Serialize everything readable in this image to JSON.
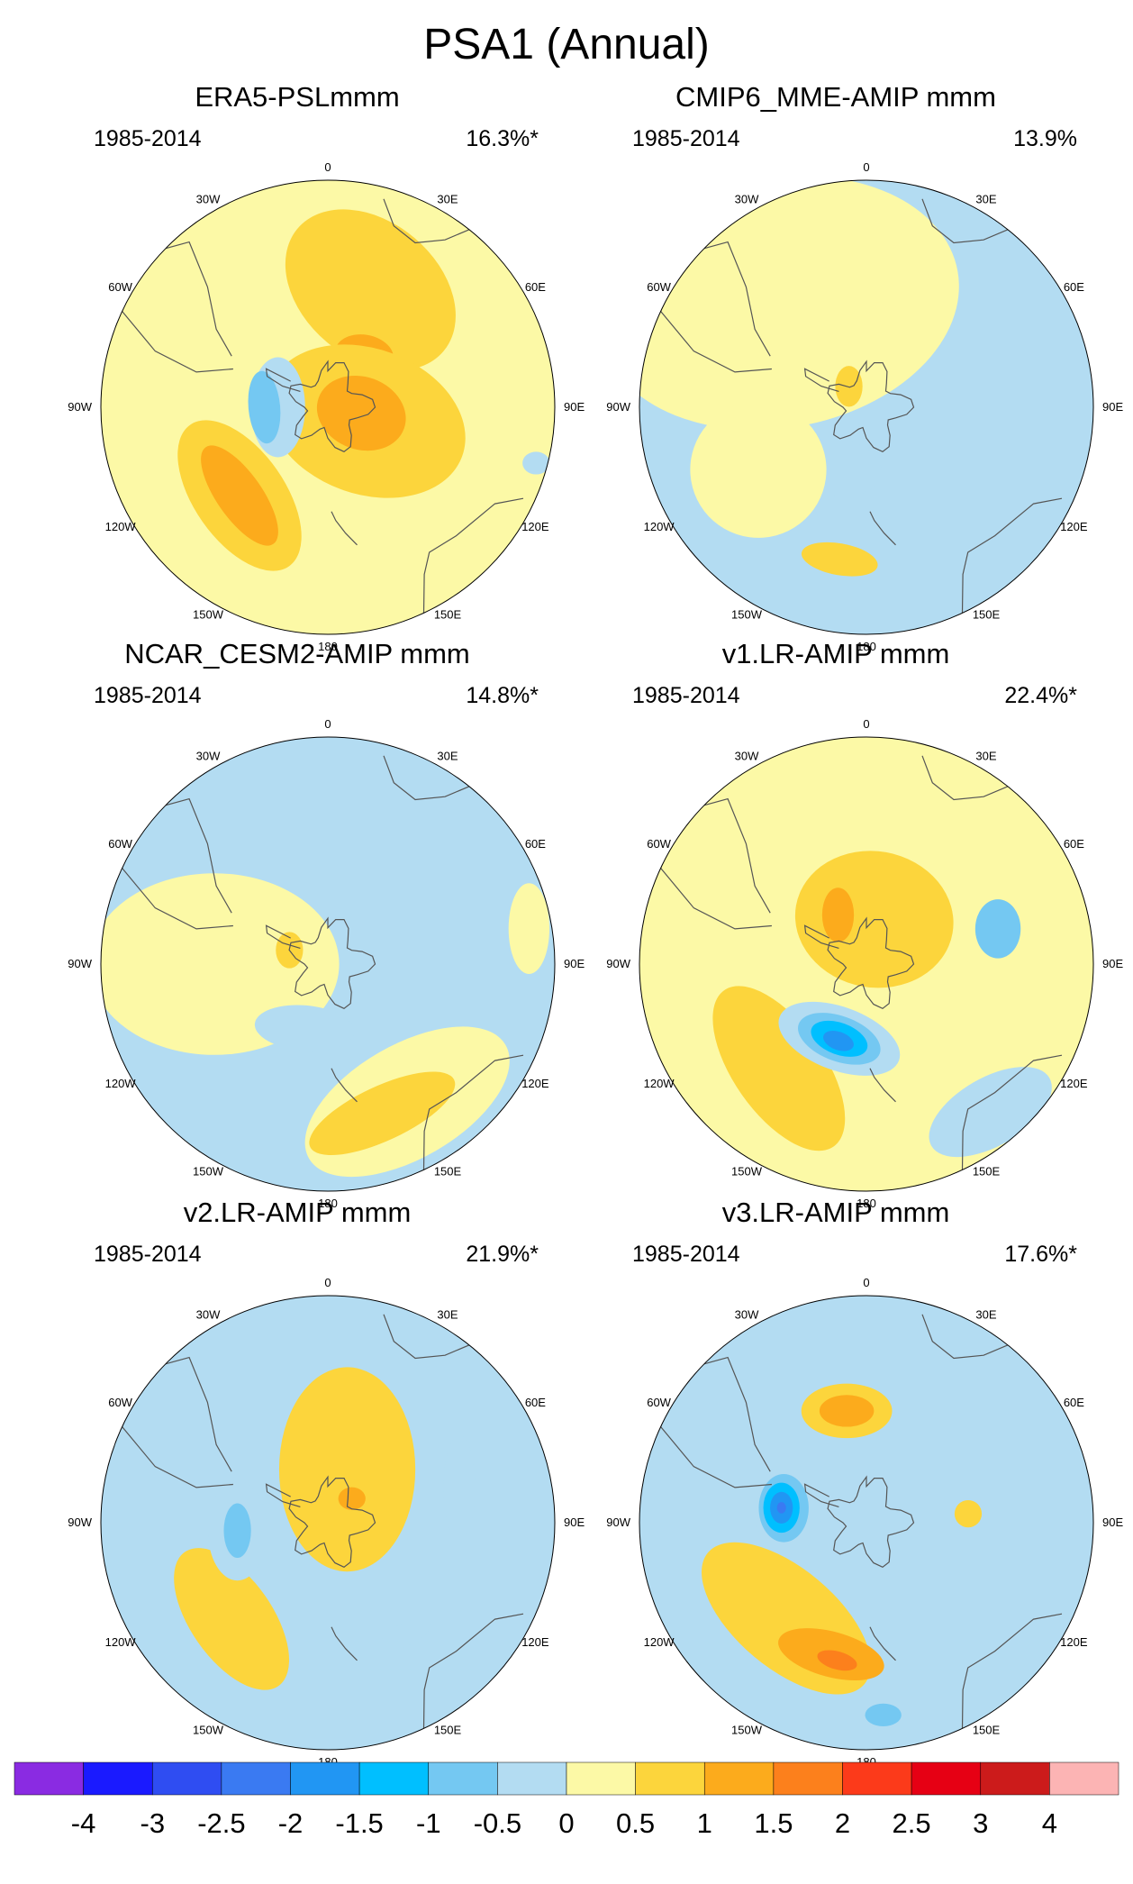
{
  "figure": {
    "title": "PSA1 (Annual)"
  },
  "panels": [
    {
      "id": "era5",
      "title": "ERA5-PSLmmm",
      "period": "1985-2014",
      "variance": "16.3%*",
      "blobs": [
        {
          "level": 1.5,
          "cx": 0.72,
          "cy": -0.1,
          "rx": 0.32,
          "ry": 0.3,
          "rot": 0
        },
        {
          "level": 1.0,
          "cx": 0.18,
          "cy": -0.62,
          "rx": 0.34,
          "ry": 0.22,
          "rot": 10
        }
      ]
    },
    {
      "id": "cmip6",
      "title": "CMIP6_MME-AMIP  mmm",
      "period": "1985-2014",
      "variance": "13.9%",
      "blobs": []
    },
    {
      "id": "cesm2",
      "title": "NCAR_CESM2-AMIP  mmm",
      "period": "1985-2014",
      "variance": "14.8%*",
      "blobs": []
    },
    {
      "id": "v1",
      "title": "v1.LR-AMIP  mmm",
      "period": "1985-2014",
      "variance": "22.4%*",
      "blobs": []
    },
    {
      "id": "v2",
      "title": "v2.LR-AMIP  mmm",
      "period": "1985-2014",
      "variance": "21.9%*",
      "blobs": []
    },
    {
      "id": "v3",
      "title": "v3.LR-AMIP  mmm",
      "period": "1985-2014",
      "variance": "17.6%*",
      "blobs": []
    }
  ],
  "longitude_labels": [
    {
      "lon": 0,
      "text": "0"
    },
    {
      "lon": 30,
      "text": "30E"
    },
    {
      "lon": 60,
      "text": "60E"
    },
    {
      "lon": 90,
      "text": "90E"
    },
    {
      "lon": 120,
      "text": "120E"
    },
    {
      "lon": 150,
      "text": "150E"
    },
    {
      "lon": 180,
      "text": "180"
    },
    {
      "lon": -150,
      "text": "150W"
    },
    {
      "lon": -120,
      "text": "120W"
    },
    {
      "lon": -90,
      "text": "90W"
    },
    {
      "lon": -60,
      "text": "60W"
    },
    {
      "lon": -30,
      "text": "30W"
    }
  ],
  "colorbar": {
    "colors": [
      "#8a2be2",
      "#1a1aff",
      "#2f4df2",
      "#3a7af2",
      "#2196f3",
      "#00bfff",
      "#74c8f2",
      "#b3dcf2",
      "#fcf9a6",
      "#fcd53c",
      "#fcab1c",
      "#fc801c",
      "#fc3a1a",
      "#e60014",
      "#cc1b1b",
      "#fcb4b4"
    ],
    "labels": [
      "-4",
      "-3",
      "-2.5",
      "-2",
      "-1.5",
      "-1",
      "-0.5",
      "0",
      "0.5",
      "1",
      "1.5",
      "2",
      "2.5",
      "3",
      "4"
    ]
  },
  "fields": {
    "era5": [
      {
        "level": 1.0,
        "lon": 20,
        "r": 0.55,
        "rx": 0.42,
        "ry": 0.3,
        "rot": 40
      },
      {
        "level": 1.5,
        "lon": 35,
        "r": 0.28,
        "rx": 0.13,
        "ry": 0.09,
        "rot": 10
      },
      {
        "level": 1.0,
        "lon": 110,
        "r": 0.18,
        "rx": 0.45,
        "ry": 0.32,
        "rot": 20
      },
      {
        "level": 1.5,
        "lon": 100,
        "r": 0.15,
        "rx": 0.2,
        "ry": 0.16,
        "rot": 20
      },
      {
        "level": 1.0,
        "lon": -135,
        "r": 0.55,
        "rx": 0.38,
        "ry": 0.2,
        "rot": 55
      },
      {
        "level": 1.5,
        "lon": -135,
        "r": 0.55,
        "rx": 0.26,
        "ry": 0.1,
        "rot": 55
      },
      {
        "level": -0.5,
        "lon": -90,
        "r": 0.22,
        "rx": 0.12,
        "ry": 0.22,
        "rot": 0
      },
      {
        "level": -1.0,
        "lon": -90,
        "r": 0.28,
        "rx": 0.07,
        "ry": 0.16,
        "rot": -5
      },
      {
        "level": -0.5,
        "lon": 105,
        "r": 0.95,
        "rx": 0.06,
        "ry": 0.05,
        "rot": 0
      }
    ],
    "cmip6": [
      {
        "level": 0.5,
        "lon": -40,
        "r": 0.6,
        "rx": 0.8,
        "ry": 0.55,
        "rot": -10
      },
      {
        "level": -0.5,
        "lon": -150,
        "r": 0.3,
        "rx": 0.22,
        "ry": 0.13,
        "rot": 10
      },
      {
        "level": 0.5,
        "lon": -120,
        "r": 0.55,
        "rx": 0.3,
        "ry": 0.3,
        "rot": 30
      },
      {
        "level": 1.0,
        "lon": -40,
        "r": 0.12,
        "rx": 0.06,
        "ry": 0.09,
        "rot": 0
      },
      {
        "level": 1.0,
        "lon": -170,
        "r": 0.68,
        "rx": 0.17,
        "ry": 0.07,
        "rot": 10
      }
    ],
    "cesm2": [
      {
        "level": 0.5,
        "lon": -90,
        "r": 0.5,
        "rx": 0.55,
        "ry": 0.4,
        "rot": 0
      },
      {
        "level": 0.5,
        "lon": 150,
        "r": 0.7,
        "rx": 0.5,
        "ry": 0.25,
        "rot": -30
      },
      {
        "level": 1.0,
        "lon": 160,
        "r": 0.7,
        "rx": 0.35,
        "ry": 0.12,
        "rot": -25
      },
      {
        "level": -0.5,
        "lon": -160,
        "r": 0.3,
        "rx": 0.22,
        "ry": 0.1,
        "rot": 5
      },
      {
        "level": 1.0,
        "lon": -70,
        "r": 0.18,
        "rx": 0.06,
        "ry": 0.08,
        "rot": 0
      },
      {
        "level": 0.5,
        "lon": 80,
        "r": 0.9,
        "rx": 0.09,
        "ry": 0.2,
        "rot": 0
      }
    ],
    "v1": [
      {
        "level": 0.5,
        "lon": 0,
        "r": 0.3,
        "rx": 0.55,
        "ry": 0.5,
        "rot": 0
      },
      {
        "level": 1.0,
        "lon": 10,
        "r": 0.2,
        "rx": 0.35,
        "ry": 0.3,
        "rot": 10
      },
      {
        "level": 1.5,
        "lon": -30,
        "r": 0.25,
        "rx": 0.07,
        "ry": 0.12,
        "rot": 0
      },
      {
        "level": 1.0,
        "lon": -140,
        "r": 0.6,
        "rx": 0.42,
        "ry": 0.2,
        "rot": 55
      },
      {
        "level": -0.5,
        "lon": -160,
        "r": 0.35,
        "rx": 0.28,
        "ry": 0.14,
        "rot": 20
      },
      {
        "level": -1.0,
        "lon": -160,
        "r": 0.35,
        "rx": 0.19,
        "ry": 0.1,
        "rot": 20
      },
      {
        "level": -1.5,
        "lon": -160,
        "r": 0.35,
        "rx": 0.13,
        "ry": 0.07,
        "rot": 20
      },
      {
        "level": -2.0,
        "lon": -160,
        "r": 0.36,
        "rx": 0.07,
        "ry": 0.04,
        "rot": 20
      },
      {
        "level": -1.0,
        "lon": 75,
        "r": 0.6,
        "rx": 0.1,
        "ry": 0.13,
        "rot": 0
      },
      {
        "level": -0.5,
        "lon": 140,
        "r": 0.85,
        "rx": 0.3,
        "ry": 0.15,
        "rot": -30
      }
    ],
    "v2": [
      {
        "level": 1.0,
        "lon": 20,
        "r": 0.25,
        "rx": 0.3,
        "ry": 0.45,
        "rot": 0
      },
      {
        "level": 1.5,
        "lon": 45,
        "r": 0.15,
        "rx": 0.06,
        "ry": 0.05,
        "rot": 0
      },
      {
        "level": 1.0,
        "lon": -135,
        "r": 0.6,
        "rx": 0.36,
        "ry": 0.18,
        "rot": 55
      },
      {
        "level": -0.5,
        "lon": -95,
        "r": 0.4,
        "rx": 0.13,
        "ry": 0.22,
        "rot": 0
      },
      {
        "level": -1.0,
        "lon": -95,
        "r": 0.4,
        "rx": 0.06,
        "ry": 0.12,
        "rot": 0
      },
      {
        "level": -0.5,
        "lon": 75,
        "r": 0.6,
        "rx": 0.07,
        "ry": 0.23,
        "rot": 0
      },
      {
        "level": -0.5,
        "lon": 145,
        "r": 0.6,
        "rx": 0.12,
        "ry": 0.05,
        "rot": -25
      }
    ],
    "v3": [
      {
        "level": 1.0,
        "lon": -10,
        "r": 0.5,
        "rx": 0.2,
        "ry": 0.12,
        "rot": 0
      },
      {
        "level": 1.5,
        "lon": -10,
        "r": 0.5,
        "rx": 0.12,
        "ry": 0.07,
        "rot": 0
      },
      {
        "level": 1.0,
        "lon": 85,
        "r": 0.45,
        "rx": 0.06,
        "ry": 0.06,
        "rot": 0
      },
      {
        "level": 1.0,
        "lon": -140,
        "r": 0.55,
        "rx": 0.45,
        "ry": 0.22,
        "rot": 40
      },
      {
        "level": 1.5,
        "lon": -165,
        "r": 0.6,
        "rx": 0.24,
        "ry": 0.1,
        "rot": 15
      },
      {
        "level": 2.0,
        "lon": -168,
        "r": 0.62,
        "rx": 0.09,
        "ry": 0.04,
        "rot": 15
      },
      {
        "level": -0.5,
        "lon": -80,
        "r": 0.35,
        "rx": 0.15,
        "ry": 0.2,
        "rot": 0
      },
      {
        "level": -1.0,
        "lon": -80,
        "r": 0.37,
        "rx": 0.11,
        "ry": 0.15,
        "rot": 0
      },
      {
        "level": -1.5,
        "lon": -80,
        "r": 0.38,
        "rx": 0.08,
        "ry": 0.11,
        "rot": 0
      },
      {
        "level": -2.0,
        "lon": -80,
        "r": 0.38,
        "rx": 0.05,
        "ry": 0.07,
        "rot": 0
      },
      {
        "level": -2.5,
        "lon": -80,
        "r": 0.38,
        "rx": 0.02,
        "ry": 0.025,
        "rot": 0
      },
      {
        "level": -1.0,
        "lon": 175,
        "r": 0.85,
        "rx": 0.08,
        "ry": 0.05,
        "rot": 0
      }
    ]
  },
  "background_levels": {
    "era5": {
      "base": 0.5,
      "land_neg": -0.5
    },
    "cmip6": {
      "base": -0.5,
      "land_neg": -0.5
    },
    "cesm2": {
      "base": -0.5,
      "land_neg": -0.5
    },
    "v1": {
      "base": 0.5,
      "land_neg": -0.5
    },
    "v2": {
      "base": -0.5,
      "land_neg": -0.5
    },
    "v3": {
      "base": -0.5,
      "land_neg": -0.5
    }
  }
}
